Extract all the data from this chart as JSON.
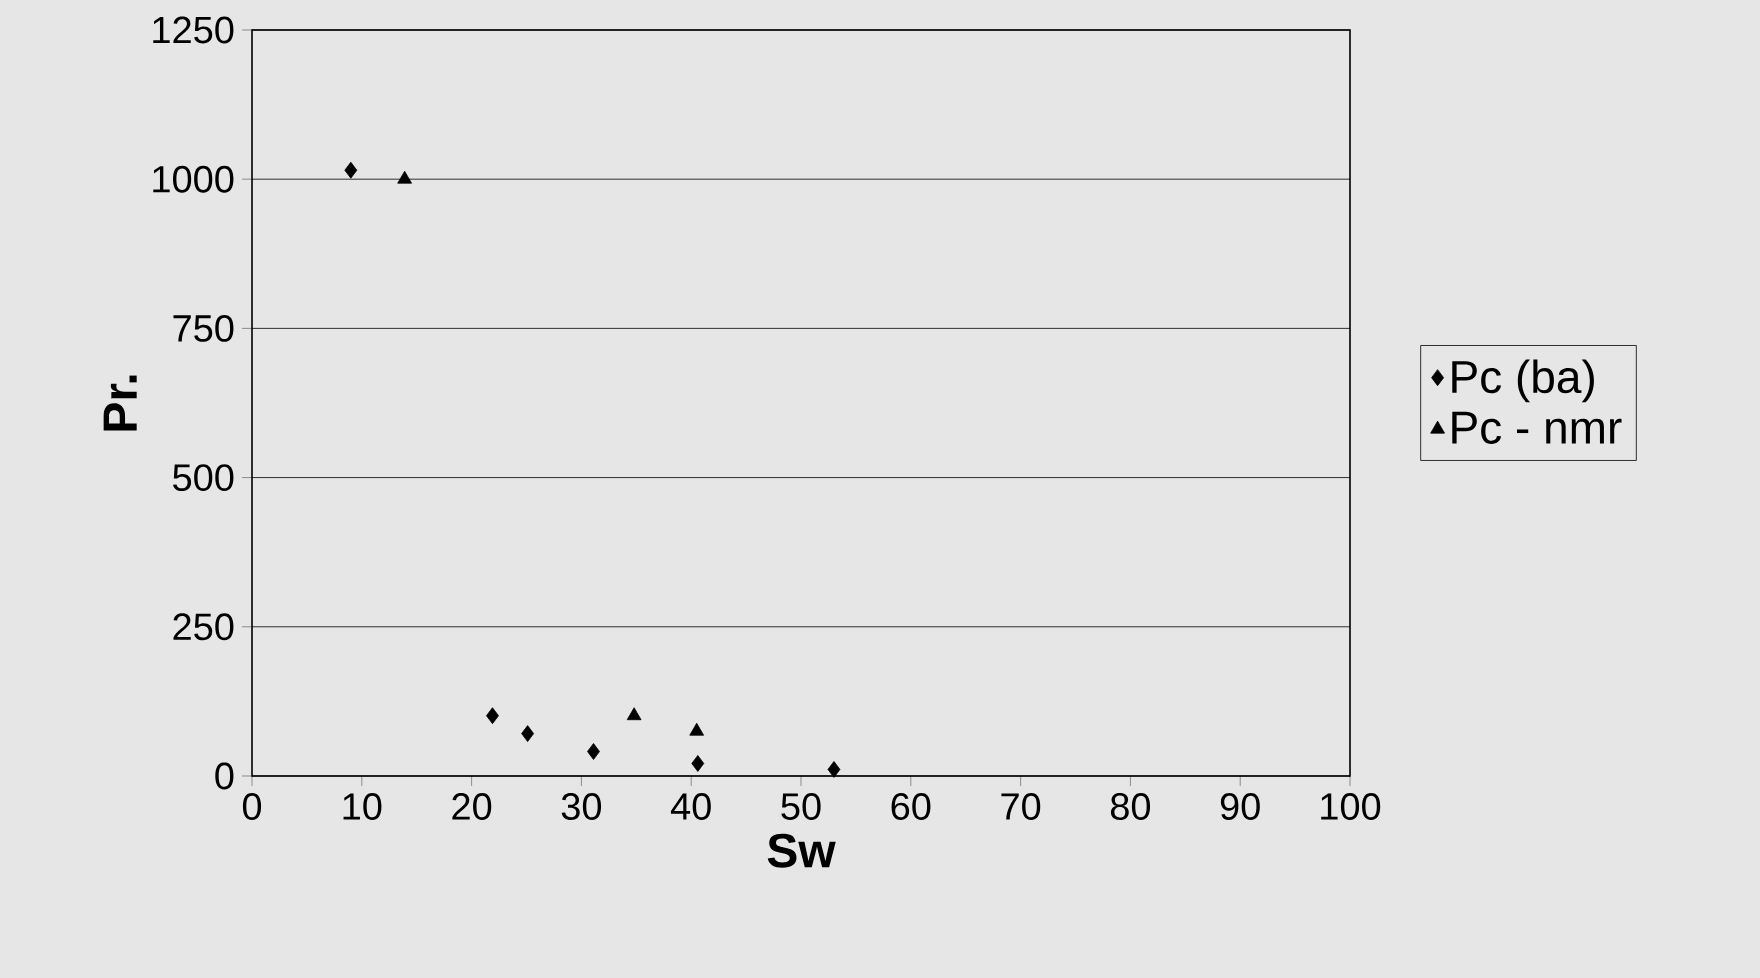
{
  "chart_data": {
    "type": "scatter",
    "xlabel": "Sw",
    "ylabel": "Pr.",
    "series": [
      {
        "name": "Pc (ba)",
        "color": "#000000",
        "marker": "diamond",
        "x": [
          9,
          21.9,
          25.1,
          31.1,
          40.6,
          53
        ],
        "values": [
          1015,
          101,
          71,
          41,
          21,
          11
        ]
      },
      {
        "name": "Pc - nmr",
        "color": "#000000",
        "marker": "triangle",
        "x": [
          13.9,
          34.8,
          40.5
        ],
        "values": [
          1000,
          101,
          75
        ]
      }
    ],
    "xlim": [
      0,
      100
    ],
    "xticks": [
      0,
      10,
      20,
      30,
      40,
      50,
      60,
      70,
      80,
      90,
      100
    ],
    "ylim": [
      0,
      1250
    ],
    "yticks": [
      0,
      250,
      500,
      750,
      1000,
      1250
    ],
    "grid": "y",
    "legend": "right"
  }
}
